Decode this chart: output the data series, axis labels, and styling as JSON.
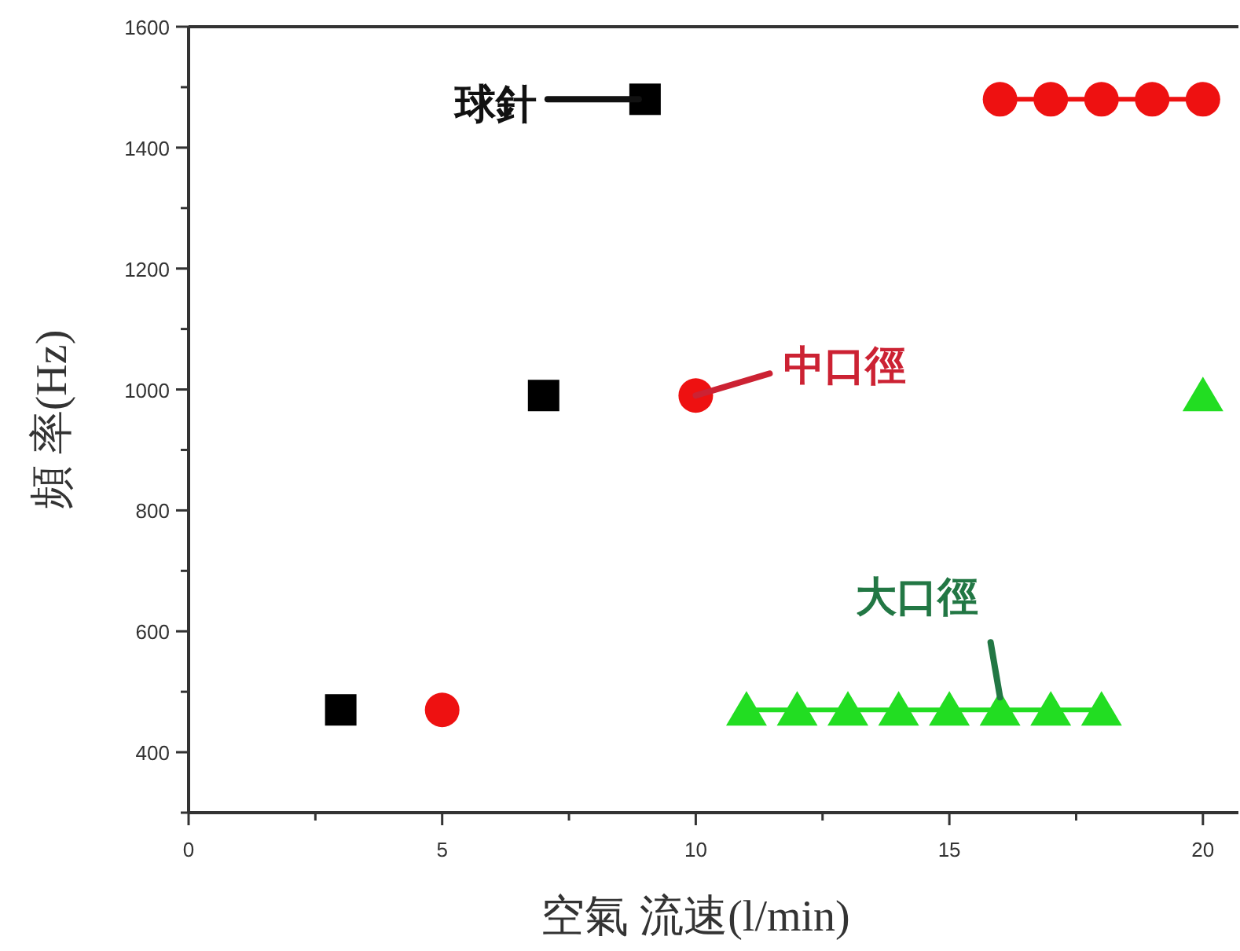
{
  "chart_data": {
    "type": "scatter",
    "xlabel": "空氣 流速(l/min)",
    "ylabel": "頻 率(Hz)",
    "xlim": [
      0,
      20.7
    ],
    "ylim": [
      300,
      1600
    ],
    "xticks": [
      0,
      {
        "value": 2.5,
        "label": null
      },
      5,
      {
        "value": 7.5,
        "label": null
      },
      10,
      {
        "value": 12.5,
        "label": null
      },
      15,
      {
        "value": 17.5,
        "label": null
      },
      20
    ],
    "yticks": [
      {
        "value": 300,
        "label": null
      },
      400,
      {
        "value": 500,
        "label": null
      },
      600,
      {
        "value": 700,
        "label": null
      },
      800,
      {
        "value": 900,
        "label": null
      },
      1000,
      {
        "value": 1100,
        "label": null
      },
      1200,
      {
        "value": 1300,
        "label": null
      },
      1400,
      {
        "value": 1500,
        "label": null
      },
      1600
    ],
    "grid": false,
    "series": [
      {
        "marker": "square",
        "color": "#000000",
        "x": [
          3,
          7,
          9
        ],
        "values": [
          470,
          990,
          1480
        ]
      },
      {
        "marker": "circle",
        "color": "#ee1111",
        "x": [
          5,
          10
        ],
        "values": [
          470,
          990
        ]
      },
      {
        "type": "line",
        "marker": "circle",
        "color": "#ee1111",
        "x": [
          16,
          17,
          18,
          19,
          20
        ],
        "values": [
          1480,
          1480,
          1480,
          1480,
          1480
        ]
      },
      {
        "type": "line",
        "marker": "triangle",
        "color": "#22dd22",
        "x": [
          11,
          12,
          13,
          14,
          15,
          16,
          17,
          18
        ],
        "values": [
          470,
          470,
          470,
          470,
          470,
          470,
          470,
          470
        ]
      },
      {
        "marker": "triangle",
        "color": "#22dd22",
        "x": [
          20
        ],
        "values": [
          990
        ]
      }
    ],
    "annotations": [
      {
        "text": "球針",
        "x": 9,
        "y": 1480
      },
      {
        "text": "中口徑",
        "x": 10,
        "y": 990
      },
      {
        "text": "大口徑",
        "x": 16,
        "y": 470
      }
    ]
  }
}
